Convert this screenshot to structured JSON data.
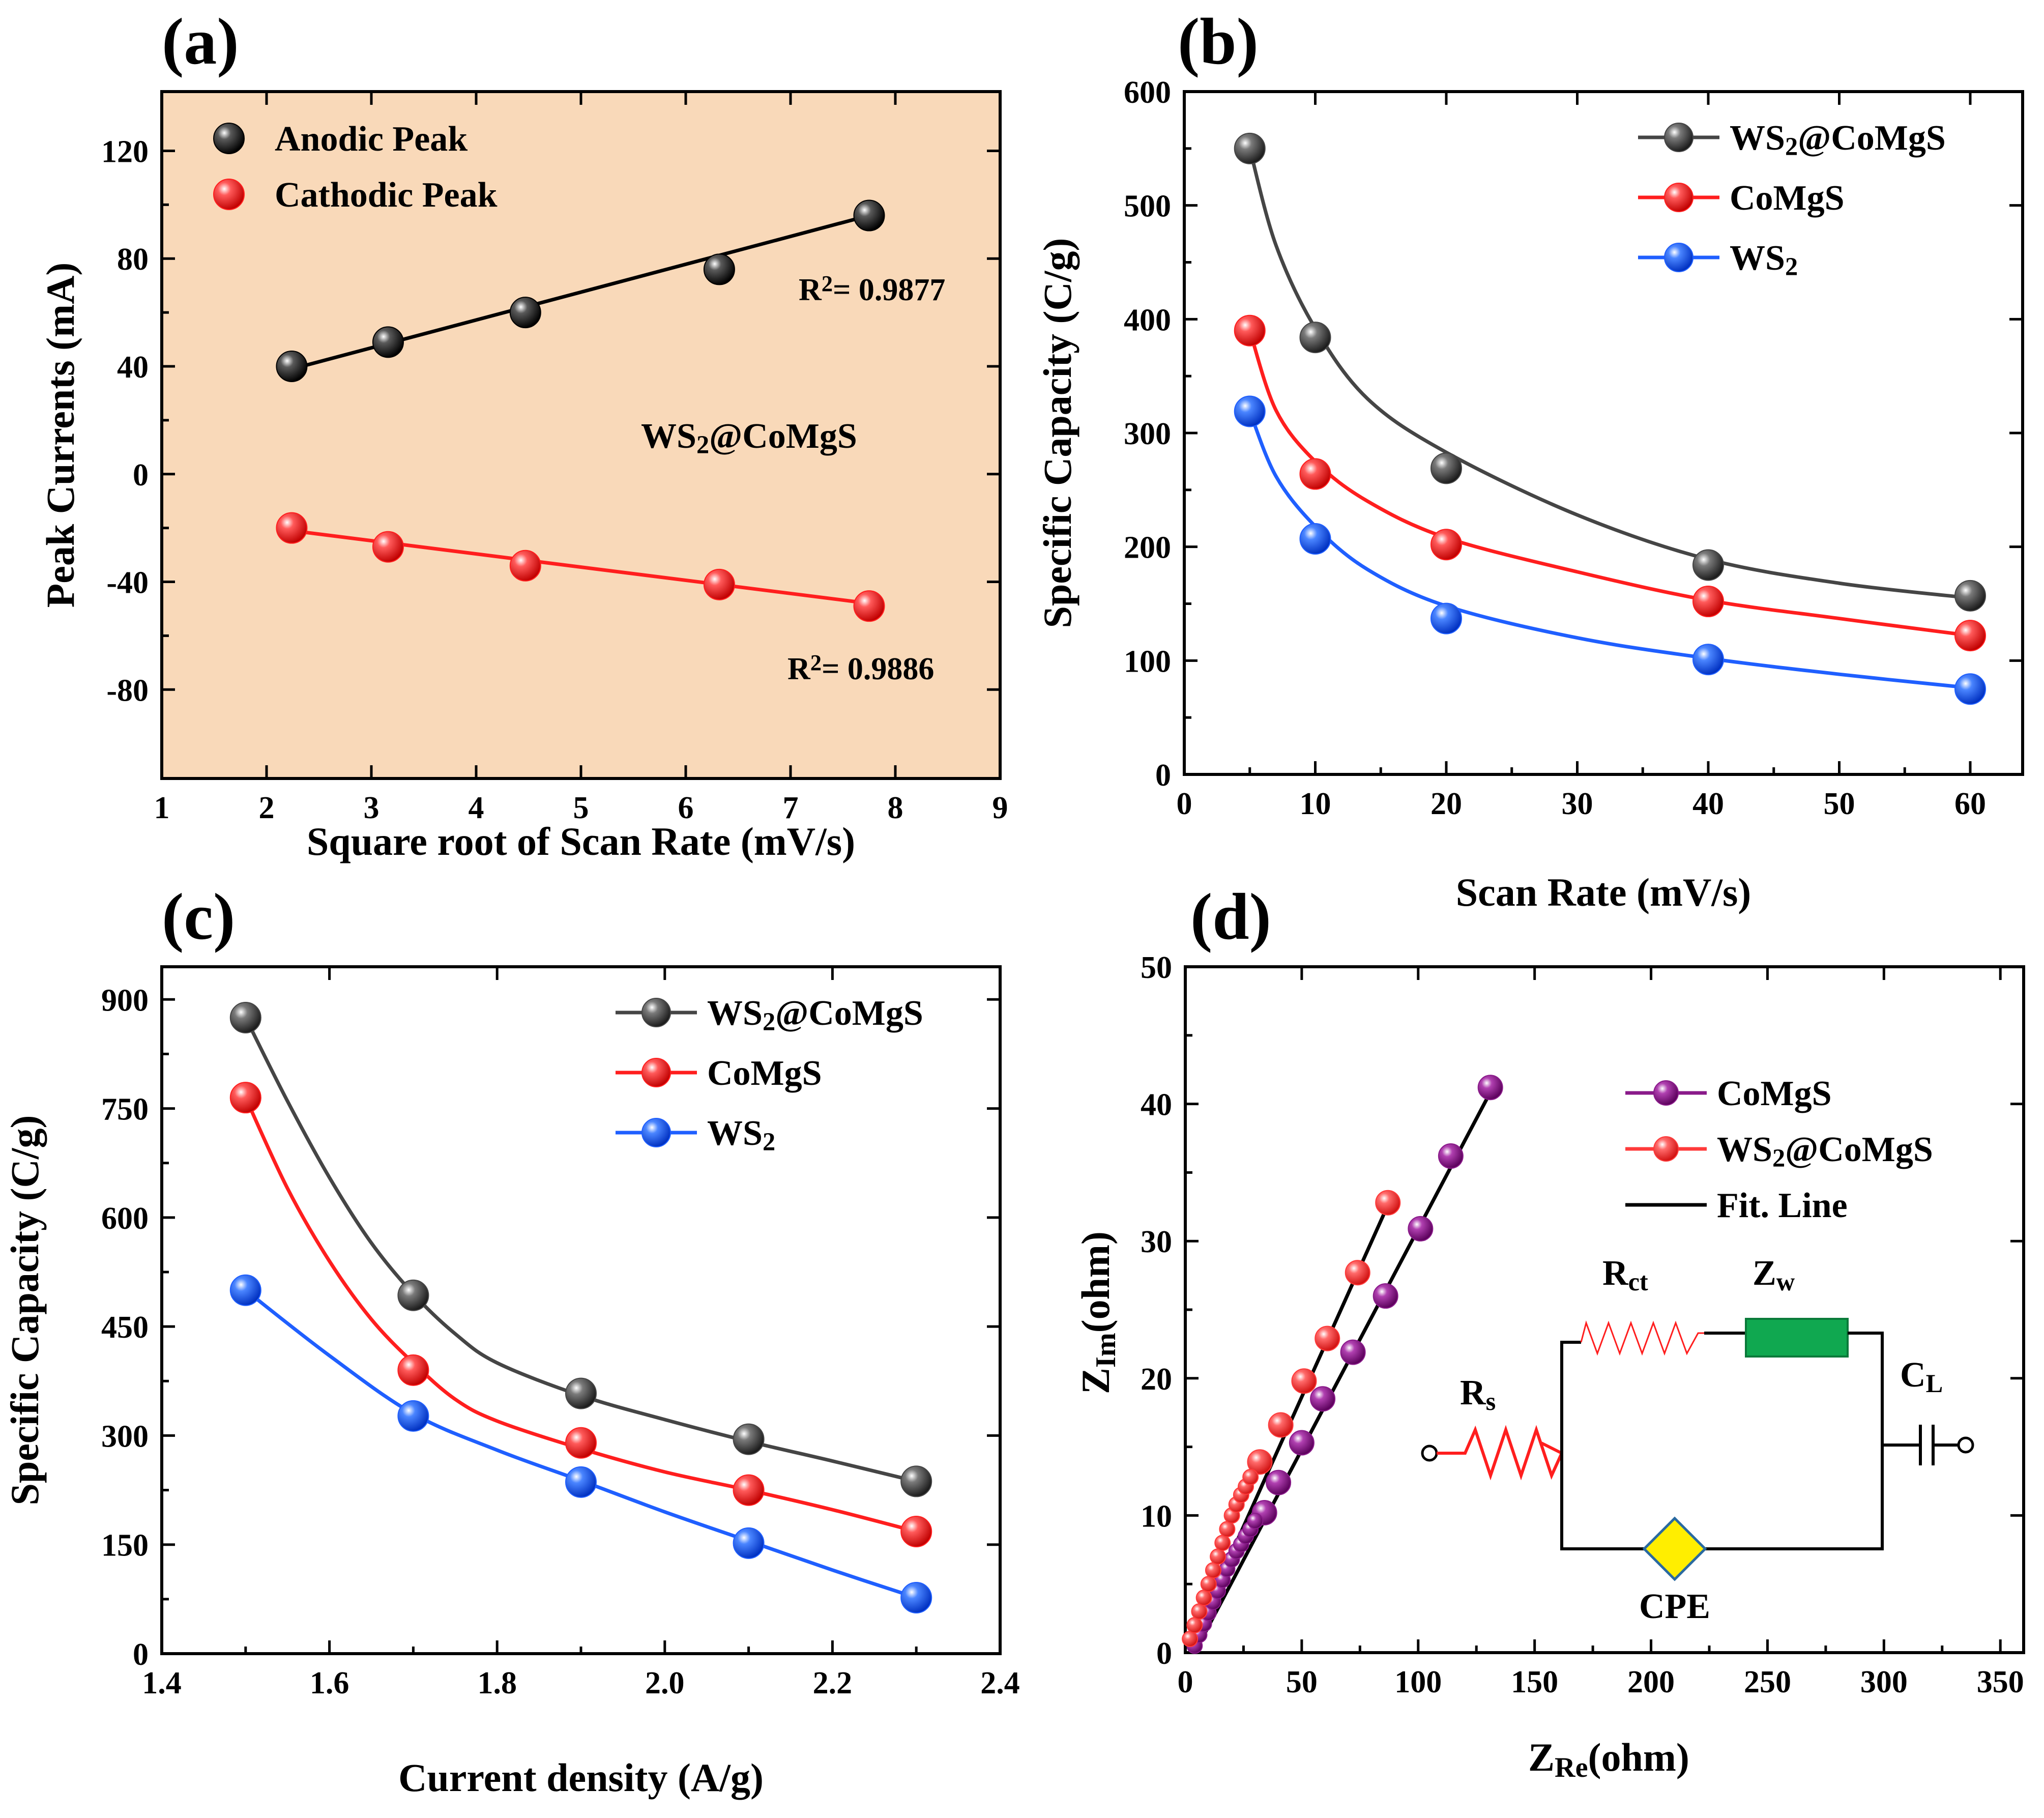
{
  "colors": {
    "black": "#000000",
    "red": "#ff1e1e",
    "blue": "#1f5fff",
    "gray": "#454545",
    "purple": "#8a1a8a",
    "salmon": "#ff3a3a",
    "panel_a_bg": "#f9d9b9",
    "green": "#10a850",
    "yellow": "#ffee00"
  },
  "panels": {
    "a": {
      "label": "(a)"
    },
    "b": {
      "label": "(b)"
    },
    "c": {
      "label": "(c)"
    },
    "d": {
      "label": "(d)"
    }
  },
  "circuit": {
    "rs": "R",
    "rs_sub": "s",
    "rct": "R",
    "rct_sub": "ct",
    "zw": "Z",
    "zw_sub": "w",
    "cl": "C",
    "cl_sub": "L",
    "cpe": "CPE"
  },
  "chart_data": [
    {
      "id": "a",
      "type": "scatter",
      "title": "",
      "xlabel": "Square root of Scan Rate (mV/s)",
      "ylabel": "Peak Currents (mA)",
      "xlim": [
        1,
        9
      ],
      "ylim": [
        -113,
        142
      ],
      "xticks": [
        1,
        2,
        3,
        4,
        5,
        6,
        7,
        8,
        9
      ],
      "yticks": [
        -80,
        -40,
        0,
        40,
        80,
        120
      ],
      "annotation": {
        "text": "WS",
        "sub": "2",
        "rest": "@CoMgS"
      },
      "r2": [
        {
          "text": "R",
          "sup": "2",
          "value": "= 0.9877",
          "color": "black"
        },
        {
          "text": "R",
          "sup": "2",
          "value": "= 0.9886",
          "color": "red"
        }
      ],
      "series": [
        {
          "name": "Anodic Peak",
          "color": "black",
          "x": [
            2.24,
            3.16,
            4.47,
            6.32,
            7.75
          ],
          "y": [
            40,
            49,
            60,
            76,
            96
          ],
          "fit": [
            [
              2.24,
              39
            ],
            [
              7.75,
              96
            ]
          ]
        },
        {
          "name": "Cathodic Peak",
          "color": "red",
          "x": [
            2.24,
            3.16,
            4.47,
            6.32,
            7.75
          ],
          "y": [
            -20,
            -27,
            -34,
            -41,
            -49
          ],
          "fit": [
            [
              2.24,
              -21
            ],
            [
              7.75,
              -48
            ]
          ]
        }
      ]
    },
    {
      "id": "b",
      "type": "line",
      "title": "",
      "xlabel": "Scan Rate (mV/s)",
      "ylabel": "Specific Capacity (C/g)",
      "xlim": [
        0,
        64
      ],
      "ylim": [
        0,
        600
      ],
      "xticks": [
        0,
        10,
        20,
        30,
        40,
        50,
        60
      ],
      "yticks": [
        0,
        100,
        200,
        300,
        400,
        500,
        600
      ],
      "series": [
        {
          "name": "WS",
          "sub": "2",
          "rest": "@CoMgS",
          "color": "gray",
          "x": [
            5,
            10,
            20,
            40,
            60
          ],
          "y": [
            550,
            384,
            269,
            184,
            157
          ],
          "curve": [
            [
              5,
              550
            ],
            [
              7,
              465
            ],
            [
              10,
              392
            ],
            [
              14,
              330
            ],
            [
              20,
              283
            ],
            [
              30,
              228
            ],
            [
              40,
              189
            ],
            [
              50,
              168
            ],
            [
              60,
              155
            ]
          ]
        },
        {
          "name": "CoMgS",
          "sub": "",
          "rest": "",
          "color": "red",
          "x": [
            5,
            10,
            20,
            40,
            60
          ],
          "y": [
            390,
            264,
            202,
            152,
            122
          ],
          "curve": [
            [
              5,
              390
            ],
            [
              7,
              320
            ],
            [
              10,
              275
            ],
            [
              14,
              240
            ],
            [
              20,
              208
            ],
            [
              30,
              178
            ],
            [
              40,
              153
            ],
            [
              50,
              137
            ],
            [
              60,
              122
            ]
          ]
        },
        {
          "name": "WS",
          "sub": "2",
          "rest": "",
          "color": "blue",
          "x": [
            5,
            10,
            20,
            40,
            60
          ],
          "y": [
            319,
            207,
            137,
            101,
            75
          ],
          "curve": [
            [
              5,
              319
            ],
            [
              7,
              262
            ],
            [
              10,
              218
            ],
            [
              14,
              180
            ],
            [
              20,
              148
            ],
            [
              30,
              120
            ],
            [
              40,
              102
            ],
            [
              50,
              88
            ],
            [
              60,
              76
            ]
          ]
        }
      ]
    },
    {
      "id": "c",
      "type": "line",
      "title": "",
      "xlabel": "Current density (A/g)",
      "ylabel": "Specific Capacity (C/g)",
      "xlim": [
        1.4,
        2.4
      ],
      "ylim": [
        0,
        945
      ],
      "xticks": [
        1.4,
        1.6,
        1.8,
        2.0,
        2.2,
        2.4
      ],
      "xtick_labels": [
        "1.4",
        "1.6",
        "1.8",
        "2.0",
        "2.2",
        "2.4"
      ],
      "yticks": [
        0,
        150,
        300,
        450,
        600,
        750,
        900
      ],
      "series": [
        {
          "name": "WS",
          "sub": "2",
          "rest": "@CoMgS",
          "color": "gray",
          "x": [
            1.5,
            1.7,
            1.9,
            2.1,
            2.3
          ],
          "y": [
            875,
            493,
            358,
            295,
            237
          ],
          "curve": [
            [
              1.5,
              875
            ],
            [
              1.55,
              760
            ],
            [
              1.6,
              655
            ],
            [
              1.65,
              565
            ],
            [
              1.7,
              495
            ],
            [
              1.75,
              440
            ],
            [
              1.8,
              400
            ],
            [
              1.9,
              355
            ],
            [
              2.0,
              322
            ],
            [
              2.1,
              292
            ],
            [
              2.2,
              265
            ],
            [
              2.3,
              237
            ]
          ]
        },
        {
          "name": "CoMgS",
          "sub": "",
          "rest": "",
          "color": "red",
          "x": [
            1.5,
            1.7,
            1.9,
            2.1,
            2.3
          ],
          "y": [
            765,
            390,
            290,
            225,
            168
          ],
          "curve": [
            [
              1.5,
              765
            ],
            [
              1.55,
              640
            ],
            [
              1.6,
              540
            ],
            [
              1.65,
              460
            ],
            [
              1.7,
              400
            ],
            [
              1.75,
              350
            ],
            [
              1.8,
              320
            ],
            [
              1.9,
              282
            ],
            [
              2.0,
              250
            ],
            [
              2.1,
              225
            ],
            [
              2.2,
              198
            ],
            [
              2.3,
              168
            ]
          ]
        },
        {
          "name": "WS",
          "sub": "2",
          "rest": "",
          "color": "blue",
          "x": [
            1.5,
            1.7,
            1.9,
            2.1,
            2.3
          ],
          "y": [
            500,
            327,
            236,
            152,
            77
          ],
          "curve": [
            [
              1.5,
              500
            ],
            [
              1.6,
              410
            ],
            [
              1.7,
              330
            ],
            [
              1.8,
              280
            ],
            [
              1.9,
              238
            ],
            [
              2.0,
              195
            ],
            [
              2.1,
              155
            ],
            [
              2.2,
              115
            ],
            [
              2.3,
              77
            ]
          ]
        }
      ]
    },
    {
      "id": "d",
      "type": "scatter",
      "title": "",
      "xlabel": {
        "text": "Z",
        "sub": "Re",
        "rest": "(ohm)"
      },
      "ylabel": {
        "text": "Z",
        "sub": "Im",
        "rest": "(ohm)"
      },
      "xlim": [
        0,
        360
      ],
      "ylim": [
        0,
        50
      ],
      "xticks": [
        0,
        50,
        100,
        150,
        200,
        250,
        300,
        350
      ],
      "yticks": [
        0,
        10,
        20,
        30,
        40,
        50
      ],
      "series": [
        {
          "name": "CoMgS",
          "color": "purple",
          "marker_size": "large",
          "x": [
            131,
            114,
            101,
            86,
            72,
            59,
            50,
            40,
            34
          ],
          "y": [
            41.2,
            36.2,
            30.9,
            26.0,
            21.9,
            18.5,
            15.3,
            12.4,
            10.2
          ]
        },
        {
          "name": "CoMgS",
          "color": "purple",
          "marker_size": "small",
          "x": [
            4,
            6,
            8,
            10,
            12,
            14,
            16,
            18,
            20,
            22,
            24,
            26,
            28,
            30
          ],
          "y": [
            0.5,
            1.3,
            2.1,
            2.9,
            3.7,
            4.5,
            5.3,
            6.1,
            6.8,
            7.4,
            7.9,
            8.5,
            9.0,
            9.6
          ]
        },
        {
          "name": "WS2@CoMgS",
          "color": "salmon",
          "marker_size": "large",
          "x": [
            87,
            74,
            61,
            51,
            41,
            32
          ],
          "y": [
            32.8,
            27.7,
            22.9,
            19.8,
            16.6,
            13.9
          ]
        },
        {
          "name": "WS2@CoMgS",
          "color": "salmon",
          "marker_size": "small",
          "x": [
            2,
            4,
            6,
            8,
            10,
            12,
            14,
            16,
            18,
            20,
            22,
            24,
            26,
            28
          ],
          "y": [
            1.0,
            2.0,
            3.0,
            4.0,
            5.0,
            6.0,
            7.0,
            8.0,
            9.0,
            10.0,
            10.8,
            11.5,
            12.1,
            12.8
          ]
        }
      ],
      "fit_lines": [
        {
          "name": "Fit. Line",
          "color": "black",
          "points": [
            [
              2,
              0.5
            ],
            [
              88,
              33
            ]
          ]
        },
        {
          "name": "Fit. Line",
          "color": "black",
          "points": [
            [
              4,
              0.0
            ],
            [
              133,
              41.5
            ]
          ]
        }
      ],
      "legend": [
        {
          "text": "CoMgS",
          "sub": "",
          "rest": "",
          "color": "purple"
        },
        {
          "text": "WS",
          "sub": "2",
          "rest": "@CoMgS",
          "color": "salmon"
        },
        {
          "text": "Fit. Line",
          "sub": "",
          "rest": "",
          "color": "black",
          "line_only": true
        }
      ]
    }
  ]
}
